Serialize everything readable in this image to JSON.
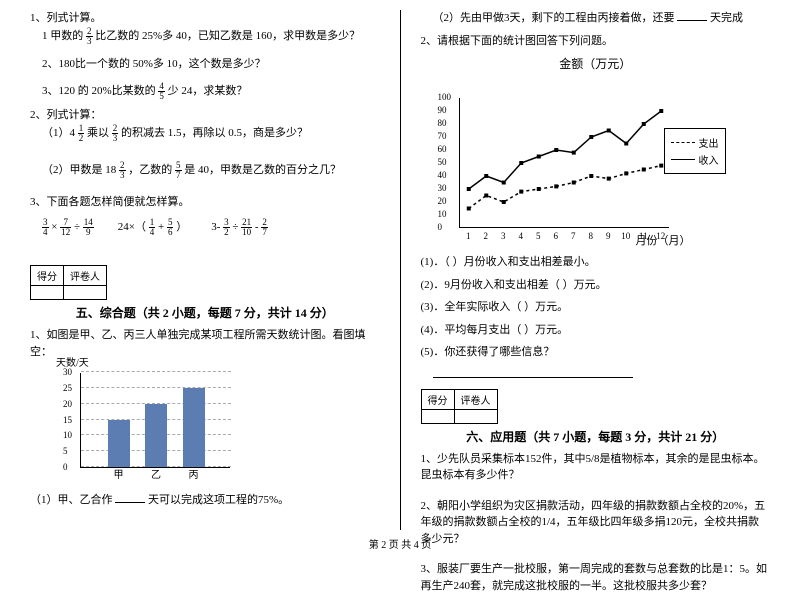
{
  "left": {
    "q1": {
      "num": "1、列式计算。",
      "a": "1 甲数的",
      "a_f": {
        "n": "2",
        "d": "3"
      },
      "a2": "比乙数的 25%多 40，已知乙数是 160，求甲数是多少？",
      "b": "2、180比一个数的 50%多 10，这个数是多少？",
      "c": "3、120 的 20%比某数的",
      "c_f": {
        "n": "4",
        "d": "5"
      },
      "c2": "少 24，求某数？"
    },
    "q2": {
      "num": "2、列式计算：",
      "a": "（1）4",
      "a_f1": {
        "n": "1",
        "d": "2"
      },
      "a2": "乘以",
      "a_f2": {
        "n": "2",
        "d": "3"
      },
      "a3": "的积减去 1.5，再除以 0.5，商是多少？",
      "b": "（2）甲数是 18",
      "b_f1": {
        "n": "2",
        "d": "3"
      },
      "b2": "，乙数的",
      "b_f2": {
        "n": "5",
        "d": "7"
      },
      "b3": "是 40，甲数是乙数的百分之几？"
    },
    "q3": {
      "num": "3、下面各题怎样简便就怎样算。",
      "e1_a": {
        "n": "3",
        "d": "4"
      },
      "e1_b": {
        "n": "7",
        "d": "12"
      },
      "e1_c": {
        "n": "14",
        "d": "9"
      },
      "e2_lead": "24×（",
      "e2_a": {
        "n": "1",
        "d": "4"
      },
      "e2_b": {
        "n": "5",
        "d": "6"
      },
      "e2_end": "）",
      "e3_a": {
        "n": "3",
        "d": "2"
      },
      "e3_b": {
        "n": "21",
        "d": "10"
      },
      "e3_c": {
        "n": "2",
        "d": "7"
      }
    },
    "score": {
      "c1": "得分",
      "c2": "评卷人"
    },
    "sec5": {
      "title": "五、综合题（共 2 小题，每题 7 分，共计 14 分）",
      "q1": "1、如图是甲、乙、丙三人单独完成某项工程所需天数统计图。看图填空：",
      "chart": {
        "ylabel": "天数/天",
        "ymax": 30,
        "ystep": 5,
        "grid_color": "#bbbbbb",
        "bar_color": "#5b7db1",
        "cats": [
          "甲",
          "乙",
          "丙"
        ],
        "vals": [
          15,
          20,
          25
        ]
      },
      "sub1": "（1）甲、乙合作",
      "sub1b": "天可以完成这项工程的75%。"
    }
  },
  "right": {
    "top": {
      "l1a": "（2）先由甲做3天，剩下的工程由丙接着做，还要",
      "l1b": "天完成",
      "l2": "2、请根据下面的统计图回答下列问题。"
    },
    "chart": {
      "title": "金额（万元）",
      "xlabel": "月份（月）",
      "ymax": 100,
      "ystep": 10,
      "xcount": 12,
      "legend": {
        "out": "支出",
        "in": "收入"
      },
      "income": [
        30,
        40,
        35,
        50,
        55,
        60,
        58,
        70,
        75,
        65,
        80,
        90
      ],
      "expense": [
        15,
        25,
        20,
        28,
        30,
        32,
        35,
        40,
        38,
        42,
        45,
        48
      ],
      "line_color": "#000000"
    },
    "subs": {
      "s1": "(1)．（  ）月份收入和支出相差最小。",
      "s2": "(2)．9月份收入和支出相差（  ）万元。",
      "s3": "(3)．全年实际收入（  ）万元。",
      "s4": "(4)．平均每月支出（  ）万元。",
      "s5": "(5)．你还获得了哪些信息？"
    },
    "score": {
      "c1": "得分",
      "c2": "评卷人"
    },
    "sec6": {
      "title": "六、应用题（共 7 小题，每题 3 分，共计 21 分）",
      "q1": "1、少先队员采集标本152件，其中5/8是植物标本，其余的是昆虫标本。昆虫标本有多少件？",
      "q2": "2、朝阳小学组织为灾区捐款活动，四年级的捐款数额占全校的20%，五年级的捐款数额占全校的1/4，五年级比四年级多捐120元，全校共捐款多少元？",
      "q3": "3、服装厂要生产一批校服，第一周完成的套数与总套数的比是1：5。如再生产240套，就完成这批校服的一半。这批校服共多少套？"
    }
  },
  "footer": "第 2 页 共 4 页"
}
